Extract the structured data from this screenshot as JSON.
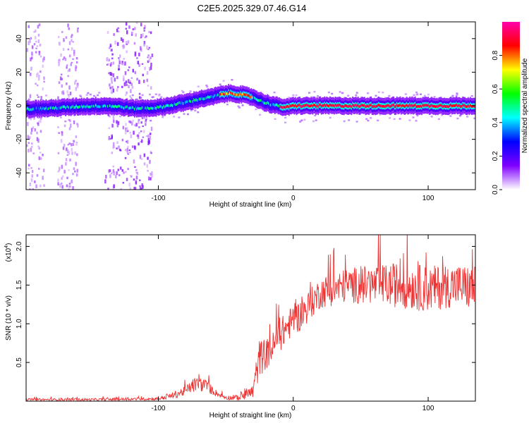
{
  "title": "C2E5.2025.329.07.46.G14",
  "chart_data": [
    {
      "type": "heatmap",
      "name": "spectrogram",
      "xlabel": "Height of straight line (km)",
      "ylabel": "Frequency (Hz)",
      "xlim": [
        -198,
        135
      ],
      "ylim": [
        -50,
        50
      ],
      "xticks": [
        -100,
        0,
        100
      ],
      "xtick_labels": [
        "-100",
        "0",
        "100"
      ],
      "yticks": [
        -40,
        -20,
        0,
        20,
        40
      ],
      "ytick_labels": [
        "-40",
        "-20",
        "0",
        "20",
        "40"
      ],
      "ridge_x": [
        -198,
        -180,
        -160,
        -140,
        -130,
        -120,
        -110,
        -100,
        -90,
        -80,
        -70,
        -62,
        -55,
        -48,
        -42,
        -35,
        -30,
        -25,
        -20,
        -15,
        -10,
        -5,
        0,
        10,
        20,
        40,
        60,
        80,
        100,
        120,
        135
      ],
      "ridge_freq": [
        -2,
        -1.5,
        -0.5,
        0,
        -0.5,
        -1.5,
        -1.5,
        -1,
        0.5,
        2,
        4,
        5,
        6.5,
        7.5,
        7,
        6,
        5,
        3,
        1.5,
        0.5,
        -0.5,
        -1,
        0,
        0,
        0,
        0,
        0,
        0,
        0,
        0,
        0
      ],
      "colorbar": {
        "label": "Normalized spectral amplitude",
        "range": [
          0,
          1
        ],
        "ticks": [
          0.0,
          0.2,
          0.4,
          0.6,
          0.8
        ],
        "tick_labels": [
          "0.0",
          "0.2",
          "0.4",
          "0.6",
          "0.8"
        ],
        "colors": [
          "#ffffff",
          "#8000ff",
          "#0000ff",
          "#00ffff",
          "#00ff00",
          "#ffff00",
          "#ff0000",
          "#ff00aa"
        ]
      },
      "noise_bands_km": [
        [
          -198,
          -185
        ],
        [
          -175,
          -160
        ],
        [
          -140,
          -105
        ]
      ]
    },
    {
      "type": "line",
      "name": "snr",
      "xlabel": "Height of straight line (km)",
      "ylabel": "SNR (10 * v/v)",
      "y_exponent": "(x10",
      "y_exponent_power": "4",
      "xlim": [
        -198,
        135
      ],
      "ylim": [
        0,
        2.15
      ],
      "xticks": [
        -100,
        0,
        100
      ],
      "xtick_labels": [
        "-100",
        "0",
        "100"
      ],
      "yticks": [
        0.5,
        1.0,
        1.5,
        2.0
      ],
      "ytick_labels": [
        "0.5",
        "1.0",
        "1.5",
        "2.0"
      ],
      "color": "#ee3333",
      "envelope_x": [
        -198,
        -150,
        -100,
        -90,
        -80,
        -75,
        -70,
        -65,
        -60,
        -55,
        -50,
        -45,
        -40,
        -35,
        -30,
        -28,
        -25,
        -22,
        -20,
        -15,
        -10,
        -5,
        0,
        5,
        10,
        15,
        20,
        30,
        40,
        50,
        60,
        80,
        100,
        120,
        135
      ],
      "envelope_mean": [
        0.02,
        0.02,
        0.03,
        0.07,
        0.13,
        0.2,
        0.22,
        0.2,
        0.14,
        0.08,
        0.05,
        0.04,
        0.05,
        0.08,
        0.12,
        0.3,
        0.55,
        0.6,
        0.6,
        0.7,
        0.85,
        0.95,
        1.05,
        1.1,
        1.2,
        1.3,
        1.4,
        1.45,
        1.5,
        1.5,
        1.5,
        1.5,
        1.45,
        1.5,
        1.45
      ],
      "envelope_noise": [
        0.015,
        0.015,
        0.02,
        0.04,
        0.06,
        0.09,
        0.1,
        0.08,
        0.06,
        0.03,
        0.03,
        0.03,
        0.04,
        0.08,
        0.1,
        0.18,
        0.25,
        0.22,
        0.2,
        0.2,
        0.22,
        0.2,
        0.2,
        0.2,
        0.2,
        0.2,
        0.2,
        0.22,
        0.22,
        0.25,
        0.25,
        0.3,
        0.3,
        0.28,
        0.3
      ]
    }
  ]
}
